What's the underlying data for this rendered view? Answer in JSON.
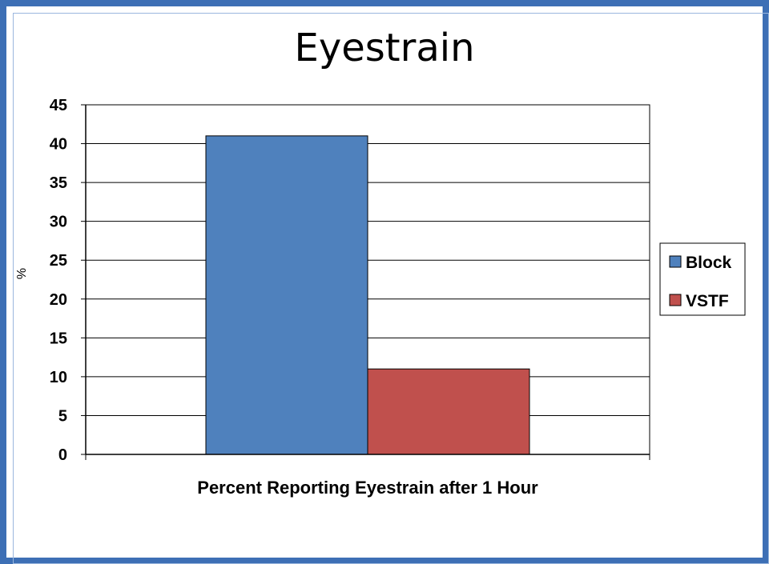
{
  "chart_data": {
    "type": "bar",
    "title": "Eyestrain",
    "xlabel": "Percent Reporting Eyestrain after 1 Hour",
    "ylabel": "%",
    "ylim": [
      0,
      45
    ],
    "yticks": [
      0,
      5,
      10,
      15,
      20,
      25,
      30,
      35,
      40,
      45
    ],
    "categories": [
      "Percent Reporting Eyestrain after 1 Hour"
    ],
    "series": [
      {
        "name": "Block",
        "values": [
          41
        ],
        "color": "#4f81bd"
      },
      {
        "name": "VSTF",
        "values": [
          11
        ],
        "color": "#c0504d"
      }
    ],
    "grid": true,
    "legend_position": "right"
  }
}
